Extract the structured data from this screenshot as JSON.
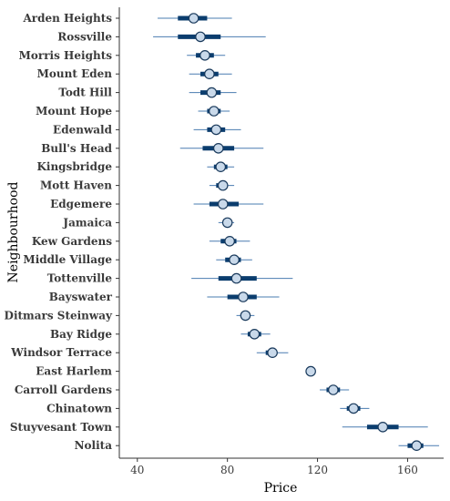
{
  "chart_data": {
    "type": "scatter",
    "title": "",
    "xlabel": "Price",
    "ylabel": "Neighbourhood",
    "xlim": [
      32,
      176
    ],
    "x_ticks": [
      40,
      80,
      120,
      160
    ],
    "grid": false,
    "colors": {
      "thin_line": "#4a7cb1",
      "thick_line": "#0b3d6e",
      "point_fill": "#c9d9ea",
      "point_stroke": "#1a3a5c",
      "axis": "#333333"
    },
    "series": [
      {
        "label": "Arden Heights",
        "point": 65,
        "inner": [
          58,
          71
        ],
        "outer": [
          49,
          82
        ]
      },
      {
        "label": "Rossville",
        "point": 68,
        "inner": [
          58,
          77
        ],
        "outer": [
          47,
          97
        ]
      },
      {
        "label": "Morris Heights",
        "point": 70,
        "inner": [
          66,
          74
        ],
        "outer": [
          62,
          79
        ]
      },
      {
        "label": "Mount Eden",
        "point": 72,
        "inner": [
          68,
          76
        ],
        "outer": [
          63,
          82
        ]
      },
      {
        "label": "Todt Hill",
        "point": 73,
        "inner": [
          68,
          77
        ],
        "outer": [
          63,
          84
        ]
      },
      {
        "label": "Mount Hope",
        "point": 74,
        "inner": [
          71,
          77
        ],
        "outer": [
          67,
          81
        ]
      },
      {
        "label": "Edenwald",
        "point": 75,
        "inner": [
          71,
          79
        ],
        "outer": [
          65,
          86
        ]
      },
      {
        "label": "Bull's Head",
        "point": 76,
        "inner": [
          69,
          83
        ],
        "outer": [
          59,
          96
        ]
      },
      {
        "label": "Kingsbridge",
        "point": 77,
        "inner": [
          74,
          80
        ],
        "outer": [
          71,
          83
        ]
      },
      {
        "label": "Mott Haven",
        "point": 78,
        "inner": [
          75,
          80
        ],
        "outer": [
          72,
          83
        ]
      },
      {
        "label": "Edgemere",
        "point": 78,
        "inner": [
          72,
          85
        ],
        "outer": [
          65,
          96
        ]
      },
      {
        "label": "Jamaica",
        "point": 80,
        "inner": [
          78,
          82
        ],
        "outer": [
          76,
          83
        ]
      },
      {
        "label": "Kew Gardens",
        "point": 81,
        "inner": [
          77,
          84
        ],
        "outer": [
          72,
          90
        ]
      },
      {
        "label": "Middle Village",
        "point": 83,
        "inner": [
          79,
          86
        ],
        "outer": [
          75,
          91
        ]
      },
      {
        "label": "Tottenville",
        "point": 84,
        "inner": [
          76,
          93
        ],
        "outer": [
          64,
          109
        ]
      },
      {
        "label": "Bayswater",
        "point": 87,
        "inner": [
          80,
          93
        ],
        "outer": [
          71,
          103
        ]
      },
      {
        "label": "Ditmars Steinway",
        "point": 88,
        "inner": [
          86,
          90
        ],
        "outer": [
          84,
          92
        ]
      },
      {
        "label": "Bay Ridge",
        "point": 92,
        "inner": [
          89,
          95
        ],
        "outer": [
          86,
          99
        ]
      },
      {
        "label": "Windsor Terrace",
        "point": 100,
        "inner": [
          97,
          102
        ],
        "outer": [
          93,
          107
        ]
      },
      {
        "label": "East Harlem",
        "point": 117,
        "inner": [
          116,
          118
        ],
        "outer": [
          115,
          119
        ]
      },
      {
        "label": "Carroll Gardens",
        "point": 127,
        "inner": [
          124,
          130
        ],
        "outer": [
          121,
          134
        ]
      },
      {
        "label": "Chinatown",
        "point": 136,
        "inner": [
          133,
          139
        ],
        "outer": [
          130,
          143
        ]
      },
      {
        "label": "Stuyvesant Town",
        "point": 149,
        "inner": [
          142,
          156
        ],
        "outer": [
          131,
          169
        ]
      },
      {
        "label": "Nolita",
        "point": 164,
        "inner": [
          160,
          167
        ],
        "outer": [
          156,
          174
        ]
      }
    ]
  }
}
